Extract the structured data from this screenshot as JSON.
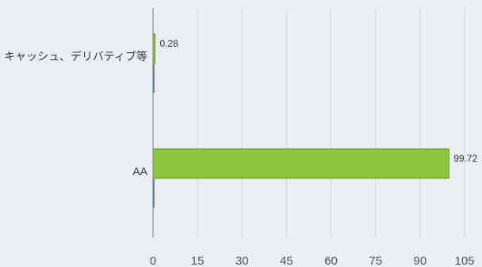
{
  "chart_data": {
    "type": "bar",
    "orientation": "horizontal",
    "categories": [
      "キャッシュ、デリバティブ等",
      "AA"
    ],
    "series": [
      {
        "values": [
          0.28,
          99.72
        ],
        "color": "#8dc63f",
        "border_color": "#5f8f1f"
      }
    ],
    "secondary_series_color": "#1f4e9e",
    "data_labels": [
      "0.28",
      "99.72"
    ],
    "xlim": [
      0,
      105
    ],
    "xticks": [
      0,
      15,
      30,
      45,
      60,
      75,
      90,
      105
    ],
    "xtick_labels": [
      "0",
      "15",
      "30",
      "45",
      "60",
      "75",
      "90",
      "105"
    ],
    "grid": true,
    "legend": "none",
    "background": "#eaeff2"
  }
}
